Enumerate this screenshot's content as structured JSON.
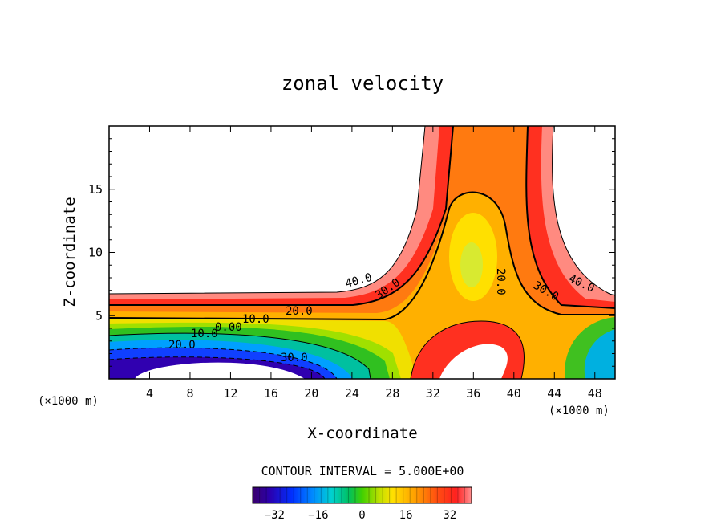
{
  "chart_data": {
    "type": "heatmap",
    "title": "zonal velocity",
    "xlabel": "X-coordinate",
    "ylabel": "Z-coordinate",
    "x_units_left": "(×1000 m)",
    "x_units_right": "(×1000 m)",
    "xlim": [
      0,
      50
    ],
    "ylim": [
      0,
      20
    ],
    "x_ticks": [
      "4",
      "8",
      "12",
      "16",
      "20",
      "24",
      "28",
      "32",
      "36",
      "40",
      "44",
      "48"
    ],
    "y_ticks": [
      "5",
      "10",
      "15"
    ],
    "contour_interval_text": "CONTOUR INTERVAL = 5.000E+00",
    "contour_labels": [
      "40.0",
      "30.0",
      "20.0",
      "10.0",
      "0.00",
      "10.0",
      "20.0",
      "30.0",
      "20.0",
      "30.0",
      "40.0"
    ],
    "colorbar": {
      "range": [
        -40,
        40
      ],
      "ticks": [
        "−32",
        "−16",
        "0",
        "16",
        "32"
      ],
      "colors": [
        "#3a006a",
        "#2a00b0",
        "#0030ff",
        "#0090ff",
        "#00d0d0",
        "#00c060",
        "#40d000",
        "#c0e000",
        "#ffe000",
        "#ffa000",
        "#ff5010",
        "#ff2020",
        "#ff9090"
      ]
    },
    "grid": false
  }
}
